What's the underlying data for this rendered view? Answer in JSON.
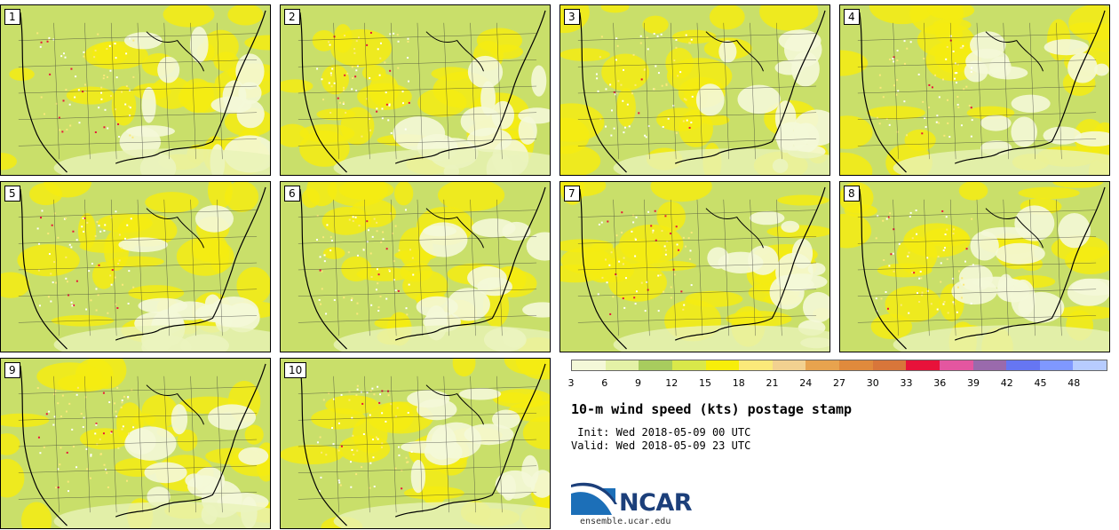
{
  "panels": [
    {
      "label": "1"
    },
    {
      "label": "2"
    },
    {
      "label": "3"
    },
    {
      "label": "4"
    },
    {
      "label": "5"
    },
    {
      "label": "6"
    },
    {
      "label": "7"
    },
    {
      "label": "8"
    },
    {
      "label": "9"
    },
    {
      "label": "10"
    }
  ],
  "legend": {
    "colors": [
      "#f4f8d8",
      "#e4f1a6",
      "#a8cc5e",
      "#d9e84a",
      "#f7ee0a",
      "#fbe97a",
      "#f2d190",
      "#e8a34e",
      "#e08a3c",
      "#d8763a",
      "#e8123a",
      "#e456a0",
      "#9a6aac",
      "#6676f2",
      "#7f98ff",
      "#b7ccff"
    ],
    "ticks": [
      "3",
      "6",
      "9",
      "12",
      "15",
      "18",
      "21",
      "24",
      "27",
      "30",
      "33",
      "36",
      "39",
      "42",
      "45",
      "48"
    ]
  },
  "title": "10-m wind speed (kts) postage stamp",
  "init": " Init: Wed 2018-05-09 00 UTC",
  "valid": "Valid: Wed 2018-05-09 23 UTC",
  "logo": {
    "text": "NCAR",
    "site": "ensemble.ucar.edu",
    "primary_color": "#1c3f7a",
    "accent_color": "#2a7bc0"
  }
}
